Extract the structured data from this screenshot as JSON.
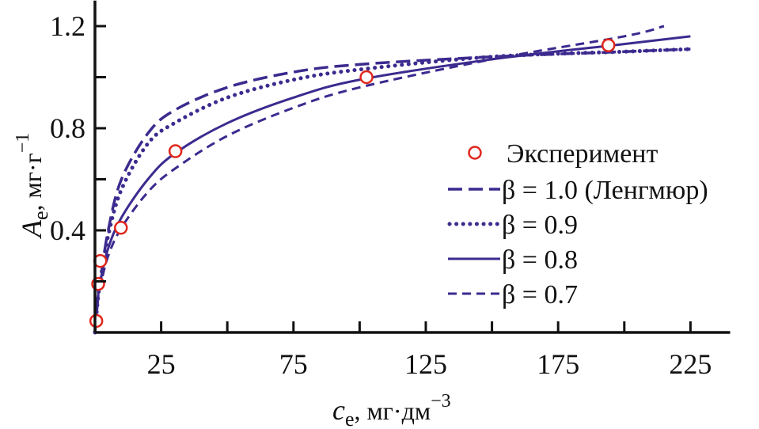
{
  "chart_data": {
    "type": "line",
    "xlabel": {
      "main": "c",
      "sub": "e",
      "unit": ", мг·дм",
      "sup": "−3"
    },
    "ylabel": {
      "main": "A",
      "sub": "e",
      "unit": ", мг·г",
      "sup": "−1"
    },
    "xlim": [
      0,
      240
    ],
    "ylim": [
      0,
      1.3
    ],
    "x_ticks": [
      25,
      50,
      75,
      100,
      125,
      150,
      175,
      200,
      225
    ],
    "x_tick_labels": [
      "25",
      "75",
      "125",
      "175",
      "225"
    ],
    "x_tick_label_values": [
      25,
      75,
      125,
      175,
      225
    ],
    "y_ticks": [
      0.2,
      0.4,
      0.6,
      0.8,
      1.0,
      1.2
    ],
    "y_tick_labels": [
      "0.4",
      "0.8",
      "1.2"
    ],
    "y_tick_label_values": [
      0.4,
      0.8,
      1.2
    ],
    "grid": false,
    "legend_position": "right",
    "colors": {
      "series": "#3d2a8f",
      "experiment": "#e0261c"
    },
    "experiment": {
      "name": "Эксперимент",
      "x": [
        0.5,
        1.2,
        2,
        9.8,
        30.4,
        102.6,
        194
      ],
      "y": [
        0.045,
        0.19,
        0.28,
        0.41,
        0.71,
        1.0,
        1.125
      ]
    },
    "series": [
      {
        "name": "β = 1.0 (Ленгмюр)",
        "dash": "long-dash",
        "x": [
          0,
          1,
          2,
          5,
          10,
          20,
          30,
          50,
          75,
          100,
          150,
          200,
          225
        ],
        "y": [
          0,
          0.12,
          0.2,
          0.4,
          0.6,
          0.78,
          0.87,
          0.96,
          1.02,
          1.05,
          1.08,
          1.1,
          1.11
        ]
      },
      {
        "name": "β = 0.9",
        "dash": "dotted",
        "x": [
          0,
          1,
          2,
          5,
          10,
          20,
          30,
          50,
          75,
          100,
          150,
          200,
          225
        ],
        "y": [
          0,
          0.12,
          0.2,
          0.38,
          0.56,
          0.74,
          0.82,
          0.92,
          0.99,
          1.03,
          1.08,
          1.1,
          1.11
        ]
      },
      {
        "name": "β = 0.8",
        "dash": "solid",
        "x": [
          0,
          1,
          2,
          5,
          10,
          20,
          30,
          50,
          75,
          100,
          150,
          200,
          225
        ],
        "y": [
          0,
          0.13,
          0.2,
          0.33,
          0.45,
          0.6,
          0.7,
          0.82,
          0.92,
          0.99,
          1.07,
          1.13,
          1.16
        ]
      },
      {
        "name": "β = 0.7",
        "dash": "short-dash",
        "x": [
          0,
          1,
          2,
          5,
          10,
          20,
          30,
          50,
          75,
          100,
          150,
          200,
          215
        ],
        "y": [
          0,
          0.12,
          0.18,
          0.3,
          0.41,
          0.55,
          0.64,
          0.77,
          0.88,
          0.96,
          1.07,
          1.16,
          1.2
        ]
      }
    ]
  }
}
